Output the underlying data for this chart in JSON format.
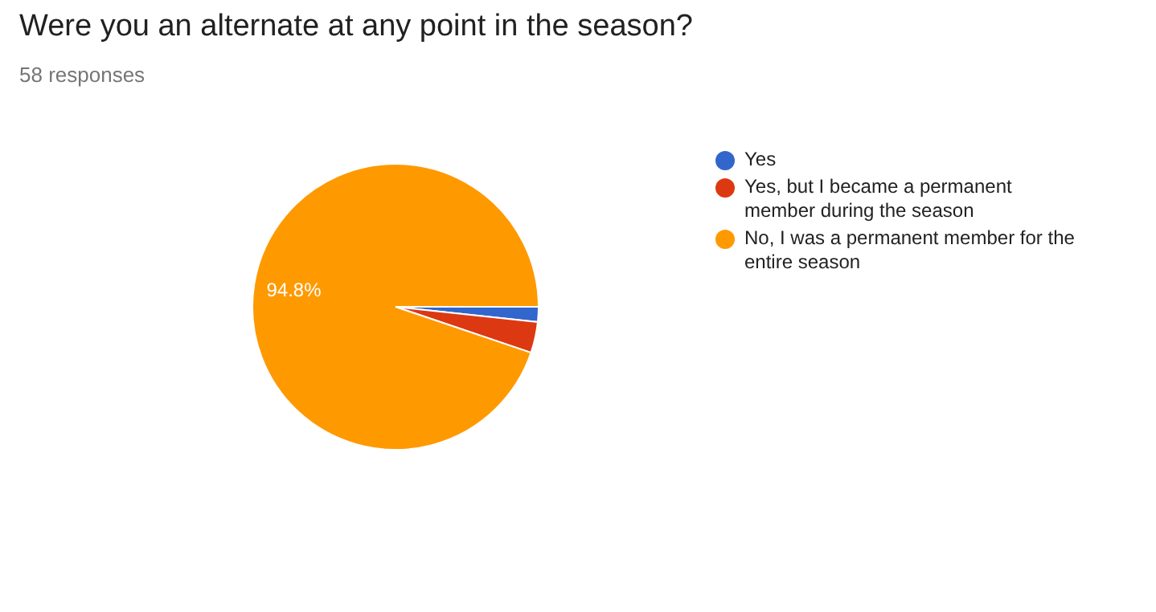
{
  "chart_data": {
    "type": "pie",
    "title": "Were you an alternate at any point in the season?",
    "subtitle": "58 responses",
    "categories": [
      "Yes",
      "Yes, but I became a permanent member during the season",
      "No, I was a permanent member for the entire season"
    ],
    "values": [
      1.7,
      3.5,
      94.8
    ],
    "colors": [
      "#3366cc",
      "#dc3912",
      "#ff9900"
    ],
    "value_labels": [
      null,
      null,
      "94.8%"
    ],
    "legend": "right"
  }
}
